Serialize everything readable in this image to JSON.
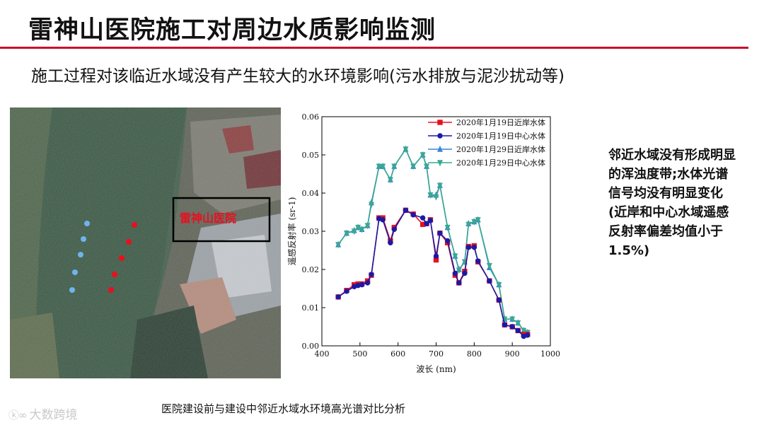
{
  "header": {
    "title": "雷神山医院施工对周边水质影响监测",
    "subtitle": "施工过程对该临近水域没有产生较大的水环境影响(污水排放与泥沙扰动等)"
  },
  "satellite": {
    "hospital_label": "雷神山医院"
  },
  "note": "邻近水域没有形成明显的浑浊度带;水体光谱信号均没有明显变化(近岸和中心水域遥感反射率偏差均值小于1.5%)",
  "caption": "医院建设前与建设中邻近水域水环境高光谱对比分析",
  "watermark": "大数跨境",
  "colors": {
    "title_rule": "#c8102e",
    "series_1": "#e8101f",
    "series_2": "#1a1aa6",
    "series_3": "#3a86d6",
    "series_4": "#3aa890"
  },
  "chart_data": {
    "type": "line",
    "xlabel": "波长 (nm)",
    "ylabel": "遥感反射率 (sr-1)",
    "xlim": [
      400,
      1000
    ],
    "ylim": [
      0,
      0.06
    ],
    "xticks": [
      "400",
      "500",
      "600",
      "700",
      "800",
      "900",
      "1000"
    ],
    "yticks": [
      "0.00",
      "0.01",
      "0.02",
      "0.03",
      "0.04",
      "0.05",
      "0.06"
    ],
    "legend_position": "top",
    "x": [
      443,
      465,
      485,
      495,
      505,
      520,
      530,
      550,
      560,
      580,
      590,
      620,
      640,
      665,
      675,
      685,
      700,
      710,
      730,
      750,
      760,
      775,
      785,
      800,
      810,
      840,
      865,
      880,
      900,
      915,
      930,
      940
    ],
    "series": [
      {
        "name": "2020年1月19日近岸水体",
        "marker": "square",
        "values": [
          0.0128,
          0.0145,
          0.016,
          0.0162,
          0.0162,
          0.017,
          0.0185,
          0.0335,
          0.0335,
          0.0275,
          0.031,
          0.0355,
          0.0345,
          0.0318,
          0.032,
          0.033,
          0.0225,
          0.0295,
          0.027,
          0.0185,
          0.0165,
          0.0195,
          0.026,
          0.0262,
          0.022,
          0.017,
          0.012,
          0.0055,
          0.005,
          0.004,
          0.003,
          0.003
        ]
      },
      {
        "name": "2020年1月19日中心水体",
        "marker": "circle",
        "values": [
          0.0128,
          0.0143,
          0.0155,
          0.0158,
          0.016,
          0.0165,
          0.0187,
          0.0333,
          0.033,
          0.027,
          0.0305,
          0.0355,
          0.0343,
          0.0335,
          0.032,
          0.0328,
          0.0235,
          0.0295,
          0.0275,
          0.019,
          0.0165,
          0.019,
          0.0258,
          0.0258,
          0.0222,
          0.017,
          0.012,
          0.0055,
          0.005,
          0.004,
          0.0025,
          0.0028
        ]
      },
      {
        "name": "2020年1月29日近岸水体",
        "marker": "triangle-up",
        "values": [
          0.0265,
          0.0295,
          0.0302,
          0.031,
          0.0305,
          0.0315,
          0.0375,
          0.047,
          0.047,
          0.0435,
          0.047,
          0.0515,
          0.047,
          0.05,
          0.047,
          0.0395,
          0.0395,
          0.042,
          0.031,
          0.0235,
          0.02,
          0.022,
          0.032,
          0.0325,
          0.033,
          0.0205,
          0.016,
          0.007,
          0.007,
          0.006,
          0.004,
          0.0035
        ]
      },
      {
        "name": "2020年1月29日中心水体",
        "marker": "triangle-down",
        "values": [
          0.0265,
          0.0295,
          0.03,
          0.031,
          0.0305,
          0.0315,
          0.037,
          0.047,
          0.047,
          0.0435,
          0.047,
          0.0515,
          0.047,
          0.05,
          0.047,
          0.0395,
          0.039,
          0.042,
          0.031,
          0.0235,
          0.0198,
          0.022,
          0.0318,
          0.0325,
          0.033,
          0.021,
          0.016,
          0.007,
          0.007,
          0.006,
          0.004,
          0.0035
        ]
      }
    ]
  }
}
